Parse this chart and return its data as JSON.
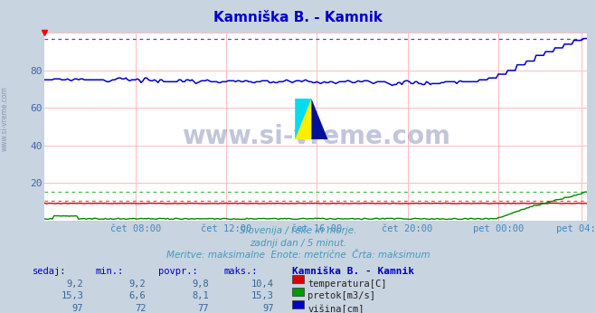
{
  "title": "Kamniška B. - Kamnik",
  "title_color": "#0000cc",
  "bg_color": "#c8d4e0",
  "plot_bg_color": "#ffffff",
  "grid_h_color": "#ffbbbb",
  "grid_v_color": "#ffbbbb",
  "ylabel_color": "#4466aa",
  "xtick_color": "#4488bb",
  "ylim": [
    0,
    100
  ],
  "yticks": [
    20,
    40,
    60,
    80
  ],
  "x_total": 288,
  "xtick_labels": [
    "čet 08:00",
    "čet 12:00",
    "čet 16:00",
    "čet 20:00",
    "pet 00:00",
    "pet 04:00"
  ],
  "xtick_positions": [
    48,
    96,
    144,
    192,
    240,
    284
  ],
  "subtitle_lines": [
    "Slovenija / reke in morje.",
    "zadnji dan / 5 minut.",
    "Meritve: maksimalne  Enote: metrične  Črta: maksimum"
  ],
  "subtitle_color": "#4499bb",
  "table_headers": [
    "sedaj:",
    "min.:",
    "povpr.:",
    "maks.:",
    "Kamniška B. - Kamnik"
  ],
  "table_rows": [
    [
      "9,2",
      "9,2",
      "9,8",
      "10,4",
      "temperatura[C]",
      "#dd0000"
    ],
    [
      "15,3",
      "6,6",
      "8,1",
      "15,3",
      "pretok[m3/s]",
      "#009900"
    ],
    [
      "97",
      "72",
      "77",
      "97",
      "višina[cm]",
      "#0000cc"
    ]
  ],
  "temp_max_line": 10.4,
  "flow_max_line": 15.3,
  "height_max_line": 97,
  "temp_color": "#cc0000",
  "flow_color": "#008800",
  "height_color": "#0000cc",
  "temp_max_color": "#ee4444",
  "flow_max_color": "#44bb44",
  "height_max_color": "#4444ee",
  "watermark_color": "#334488",
  "left_text": "www.si-vreme.com",
  "left_text_color": "#7788aa"
}
